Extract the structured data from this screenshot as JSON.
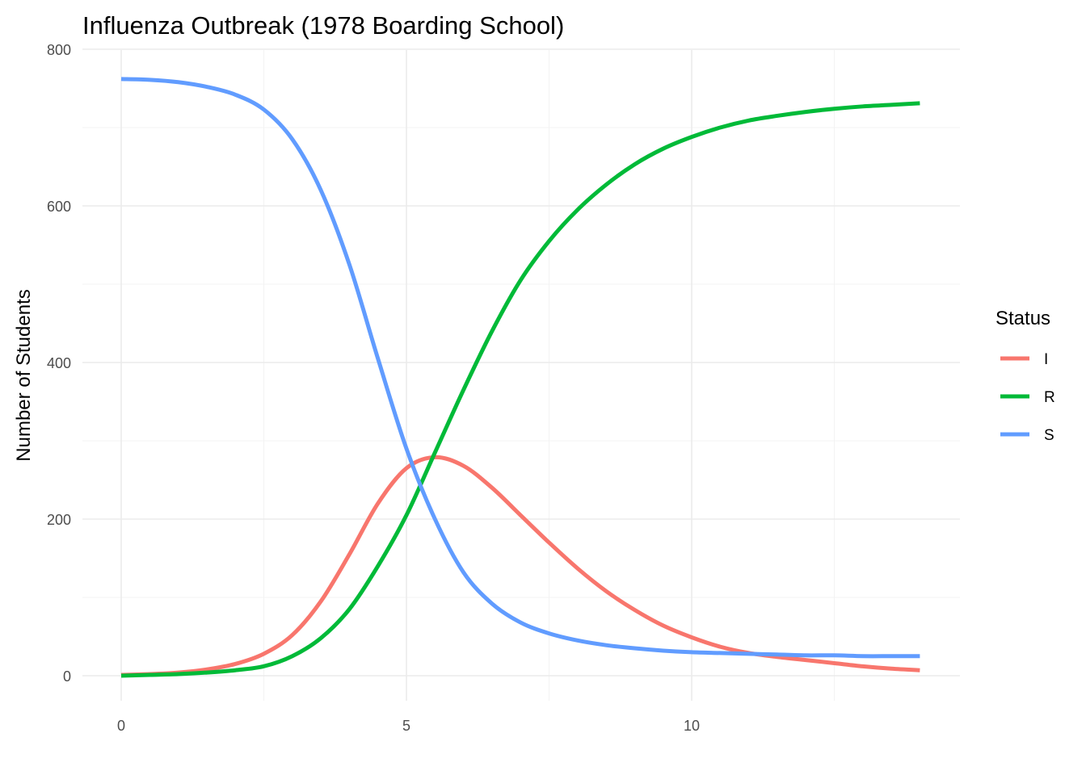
{
  "chart_data": {
    "type": "line",
    "title": "Influenza Outbreak (1978 Boarding School)",
    "xlabel": "",
    "ylabel": "Number of Students",
    "xlim": [
      0,
      14
    ],
    "ylim": [
      0,
      800
    ],
    "x_ticks": [
      0,
      5,
      10
    ],
    "y_ticks": [
      0,
      200,
      400,
      600,
      800
    ],
    "grid": true,
    "legend": {
      "title": "Status",
      "placement": "right"
    },
    "x": [
      0,
      0.5,
      1,
      1.5,
      2,
      2.5,
      3,
      3.5,
      4,
      4.5,
      5,
      5.5,
      6,
      6.5,
      7,
      7.5,
      8,
      8.5,
      9,
      9.5,
      10,
      10.5,
      11,
      11.5,
      12,
      12.5,
      13,
      13.5,
      14
    ],
    "series": [
      {
        "name": "I",
        "color": "#F8766D",
        "values": [
          1,
          2,
          4,
          8,
          15,
          28,
          52,
          95,
          155,
          220,
          265,
          279,
          268,
          240,
          205,
          170,
          137,
          108,
          84,
          64,
          49,
          37,
          29,
          24,
          20,
          16,
          12,
          9,
          7
        ]
      },
      {
        "name": "R",
        "color": "#00BA38",
        "values": [
          0,
          1,
          2,
          4,
          7,
          12,
          25,
          48,
          85,
          140,
          205,
          285,
          365,
          440,
          505,
          555,
          595,
          627,
          653,
          673,
          688,
          700,
          709,
          715,
          720,
          724,
          727,
          729,
          731
        ]
      },
      {
        "name": "S",
        "color": "#619CFF",
        "values": [
          762,
          761,
          758,
          752,
          742,
          723,
          685,
          620,
          525,
          405,
          290,
          200,
          132,
          92,
          68,
          54,
          45,
          39,
          35,
          32,
          30,
          29,
          28,
          27,
          26,
          26,
          25,
          25,
          25
        ]
      }
    ]
  }
}
